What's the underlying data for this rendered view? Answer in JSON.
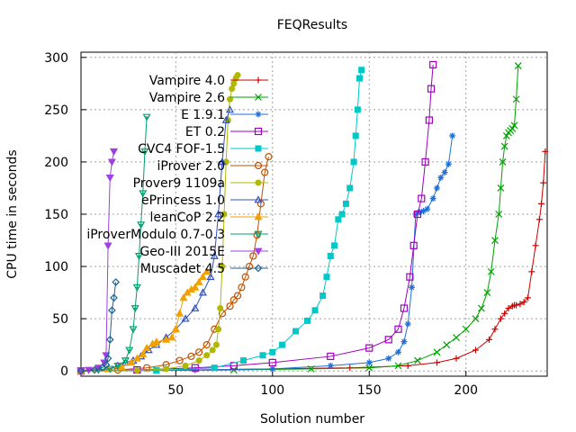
{
  "chart_data": {
    "type": "line",
    "title": "FEQResults",
    "xlabel": "Solution number",
    "ylabel": "CPU time in seconds",
    "xlim": [
      1,
      242
    ],
    "ylim": [
      -5,
      305
    ],
    "xticks": [
      50,
      100,
      150,
      200
    ],
    "yticks": [
      0,
      50,
      100,
      150,
      200,
      250,
      300
    ],
    "grid": true,
    "legend_position": "top-left",
    "series": [
      {
        "name": "Vampire 4.0",
        "color": "#d00000",
        "marker": "plus",
        "x": [
          1,
          30,
          60,
          100,
          140,
          170,
          185,
          195,
          205,
          212,
          215,
          218,
          220,
          222,
          224,
          225,
          226,
          228,
          230,
          232,
          234,
          236,
          238,
          239,
          240,
          241
        ],
        "y": [
          0,
          0.5,
          1,
          2,
          3,
          5,
          8,
          12,
          20,
          30,
          40,
          50,
          55,
          60,
          62,
          63,
          63,
          64,
          66,
          70,
          95,
          120,
          145,
          160,
          180,
          210
        ]
      },
      {
        "name": "Vampire 2.6",
        "color": "#00a000",
        "marker": "cross",
        "x": [
          1,
          40,
          80,
          120,
          150,
          165,
          175,
          185,
          190,
          195,
          200,
          205,
          208,
          211,
          213,
          215,
          217,
          218,
          219,
          220,
          221,
          222,
          223,
          224,
          225,
          226,
          227
        ],
        "y": [
          0,
          0.5,
          1,
          2,
          3,
          5,
          10,
          18,
          25,
          32,
          40,
          50,
          60,
          75,
          95,
          125,
          150,
          175,
          200,
          215,
          225,
          228,
          230,
          232,
          235,
          260,
          292
        ]
      },
      {
        "name": "E 1.9.1",
        "color": "#1f6fd6",
        "marker": "star",
        "x": [
          1,
          30,
          60,
          100,
          130,
          150,
          160,
          165,
          168,
          170,
          172,
          174,
          176,
          178,
          180,
          183,
          185,
          187,
          189,
          191,
          193
        ],
        "y": [
          0,
          0.5,
          1,
          2,
          5,
          8,
          12,
          18,
          28,
          45,
          80,
          150,
          152,
          153,
          155,
          165,
          175,
          185,
          190,
          198,
          225
        ]
      },
      {
        "name": "ET 0.2",
        "color": "#a000c0",
        "marker": "square",
        "x": [
          1,
          30,
          60,
          80,
          100,
          130,
          150,
          160,
          165,
          168,
          171,
          173,
          175,
          177,
          179,
          181,
          182,
          183
        ],
        "y": [
          0,
          1,
          3,
          5,
          8,
          14,
          22,
          30,
          40,
          60,
          90,
          120,
          150,
          165,
          200,
          240,
          270,
          293
        ]
      },
      {
        "name": "CVC4 FOF-1.5",
        "color": "#00c8c8",
        "marker": "filled-square",
        "x": [
          1,
          40,
          70,
          85,
          95,
          100,
          105,
          112,
          118,
          122,
          126,
          128,
          130,
          132,
          134,
          136,
          138,
          140,
          142,
          143,
          144,
          145,
          146
        ],
        "y": [
          0,
          0.5,
          3,
          10,
          15,
          18,
          25,
          38,
          48,
          58,
          72,
          90,
          110,
          120,
          145,
          150,
          160,
          175,
          200,
          225,
          250,
          280,
          288
        ]
      },
      {
        "name": "iProver 2.0",
        "color": "#c05000",
        "marker": "circle",
        "x": [
          1,
          20,
          35,
          45,
          52,
          58,
          62,
          66,
          70,
          74,
          78,
          80,
          82,
          84,
          86,
          88,
          90,
          92,
          94,
          96,
          98
        ],
        "y": [
          0,
          1,
          3,
          6,
          10,
          14,
          18,
          25,
          40,
          55,
          62,
          68,
          72,
          80,
          90,
          100,
          110,
          130,
          160,
          190,
          205
        ]
      },
      {
        "name": "Prover9 1109a",
        "color": "#b0b800",
        "marker": "filled-circle",
        "x": [
          1,
          30,
          45,
          55,
          62,
          66,
          69,
          71,
          72,
          73,
          74,
          75,
          76,
          77,
          78,
          79,
          80,
          81,
          82
        ],
        "y": [
          0,
          0.5,
          2,
          5,
          10,
          15,
          20,
          25,
          40,
          60,
          100,
          150,
          200,
          240,
          260,
          270,
          275,
          280,
          283
        ]
      },
      {
        "name": "ePrincess 1.0",
        "color": "#3050c0",
        "marker": "triangle",
        "x": [
          1,
          15,
          20,
          24,
          28,
          32,
          36,
          40,
          45,
          50,
          55,
          60,
          64,
          68,
          70,
          72,
          74,
          76,
          78
        ],
        "y": [
          0,
          2,
          5,
          8,
          10,
          14,
          20,
          25,
          32,
          40,
          50,
          60,
          75,
          90,
          110,
          150,
          200,
          240,
          250
        ]
      },
      {
        "name": "leanCoP 2.2",
        "color": "#f0a000",
        "marker": "filled-triangle",
        "x": [
          1,
          15,
          22,
          27,
          30,
          33,
          35,
          38,
          40,
          45,
          48,
          50,
          52,
          54,
          56,
          58,
          60,
          62,
          64,
          66
        ],
        "y": [
          0,
          2,
          4,
          8,
          12,
          16,
          22,
          26,
          28,
          30,
          32,
          40,
          55,
          70,
          75,
          78,
          80,
          85,
          90,
          95
        ]
      },
      {
        "name": "iProverModulo 0.7-0.3",
        "color": "#00a070",
        "marker": "down-triangle-cross",
        "x": [
          1,
          10,
          16,
          20,
          24,
          26,
          28,
          29,
          30,
          31,
          32,
          33,
          34,
          35
        ],
        "y": [
          0,
          1,
          2,
          5,
          10,
          20,
          40,
          60,
          80,
          110,
          140,
          170,
          210,
          243
        ]
      },
      {
        "name": "Geo-III 2015E",
        "color": "#a040e0",
        "marker": "filled-down-triangle",
        "x": [
          1,
          5,
          10,
          13,
          14,
          15,
          16,
          17,
          18
        ],
        "y": [
          0,
          1,
          3,
          8,
          15,
          120,
          185,
          200,
          210
        ]
      },
      {
        "name": "Muscadet 4.5",
        "color": "#1f6090",
        "marker": "diamond",
        "x": [
          1,
          8,
          12,
          14,
          15,
          16,
          17,
          18,
          19
        ],
        "y": [
          0,
          1,
          3,
          6,
          12,
          30,
          58,
          70,
          85
        ]
      }
    ]
  }
}
